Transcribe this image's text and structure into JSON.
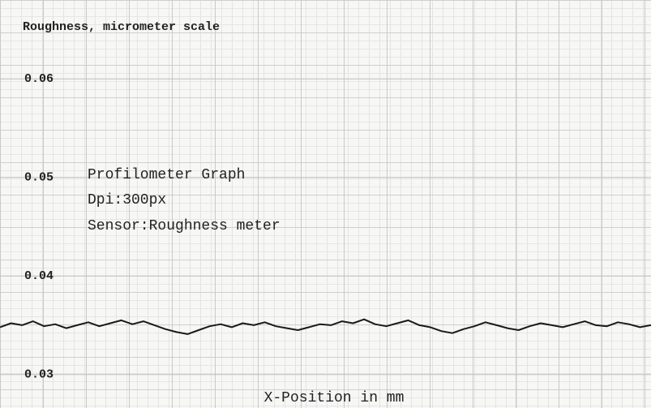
{
  "chart_data": {
    "type": "line",
    "title": "Roughness, micrometer scale",
    "x_label": "X-Position in mm",
    "annotations": [
      "Profilometer Graph",
      "Dpi:300px",
      "Sensor:Roughness meter"
    ],
    "categories": [
      null,
      null,
      null,
      null,
      null,
      null,
      null,
      null,
      null,
      null,
      null,
      null,
      null,
      null,
      null,
      null,
      null,
      null,
      null,
      null,
      null,
      null,
      null,
      null,
      null,
      null,
      null,
      null,
      null,
      null,
      null,
      null,
      null,
      null,
      null,
      null,
      null,
      null,
      null,
      null,
      null,
      null,
      null,
      null,
      null,
      null,
      null,
      null,
      null,
      null,
      null,
      null,
      null,
      null,
      null,
      null,
      null,
      null,
      null,
      null
    ],
    "series": [
      {
        "name": "Roughness",
        "color": "#1a1a1a",
        "values": [
          0.0348,
          0.0352,
          0.035,
          0.0354,
          0.0349,
          0.0351,
          0.0347,
          0.035,
          0.0353,
          0.0349,
          0.0352,
          0.0355,
          0.0351,
          0.0354,
          0.035,
          0.0346,
          0.0343,
          0.0341,
          0.0345,
          0.0349,
          0.0351,
          0.0348,
          0.0352,
          0.035,
          0.0353,
          0.0349,
          0.0347,
          0.0345,
          0.0348,
          0.0351,
          0.035,
          0.0354,
          0.0352,
          0.0356,
          0.0351,
          0.0349,
          0.0352,
          0.0355,
          0.035,
          0.0348,
          0.0344,
          0.0342,
          0.0346,
          0.0349,
          0.0353,
          0.035,
          0.0347,
          0.0345,
          0.0349,
          0.0352,
          0.035,
          0.0348,
          0.0351,
          0.0354,
          0.035,
          0.0349,
          0.0353,
          0.0351,
          0.0348,
          0.035
        ]
      }
    ],
    "ylim": [
      0.0266,
      0.068
    ],
    "yticks": [
      0.03,
      0.04,
      0.05,
      0.06
    ],
    "grid": true
  }
}
